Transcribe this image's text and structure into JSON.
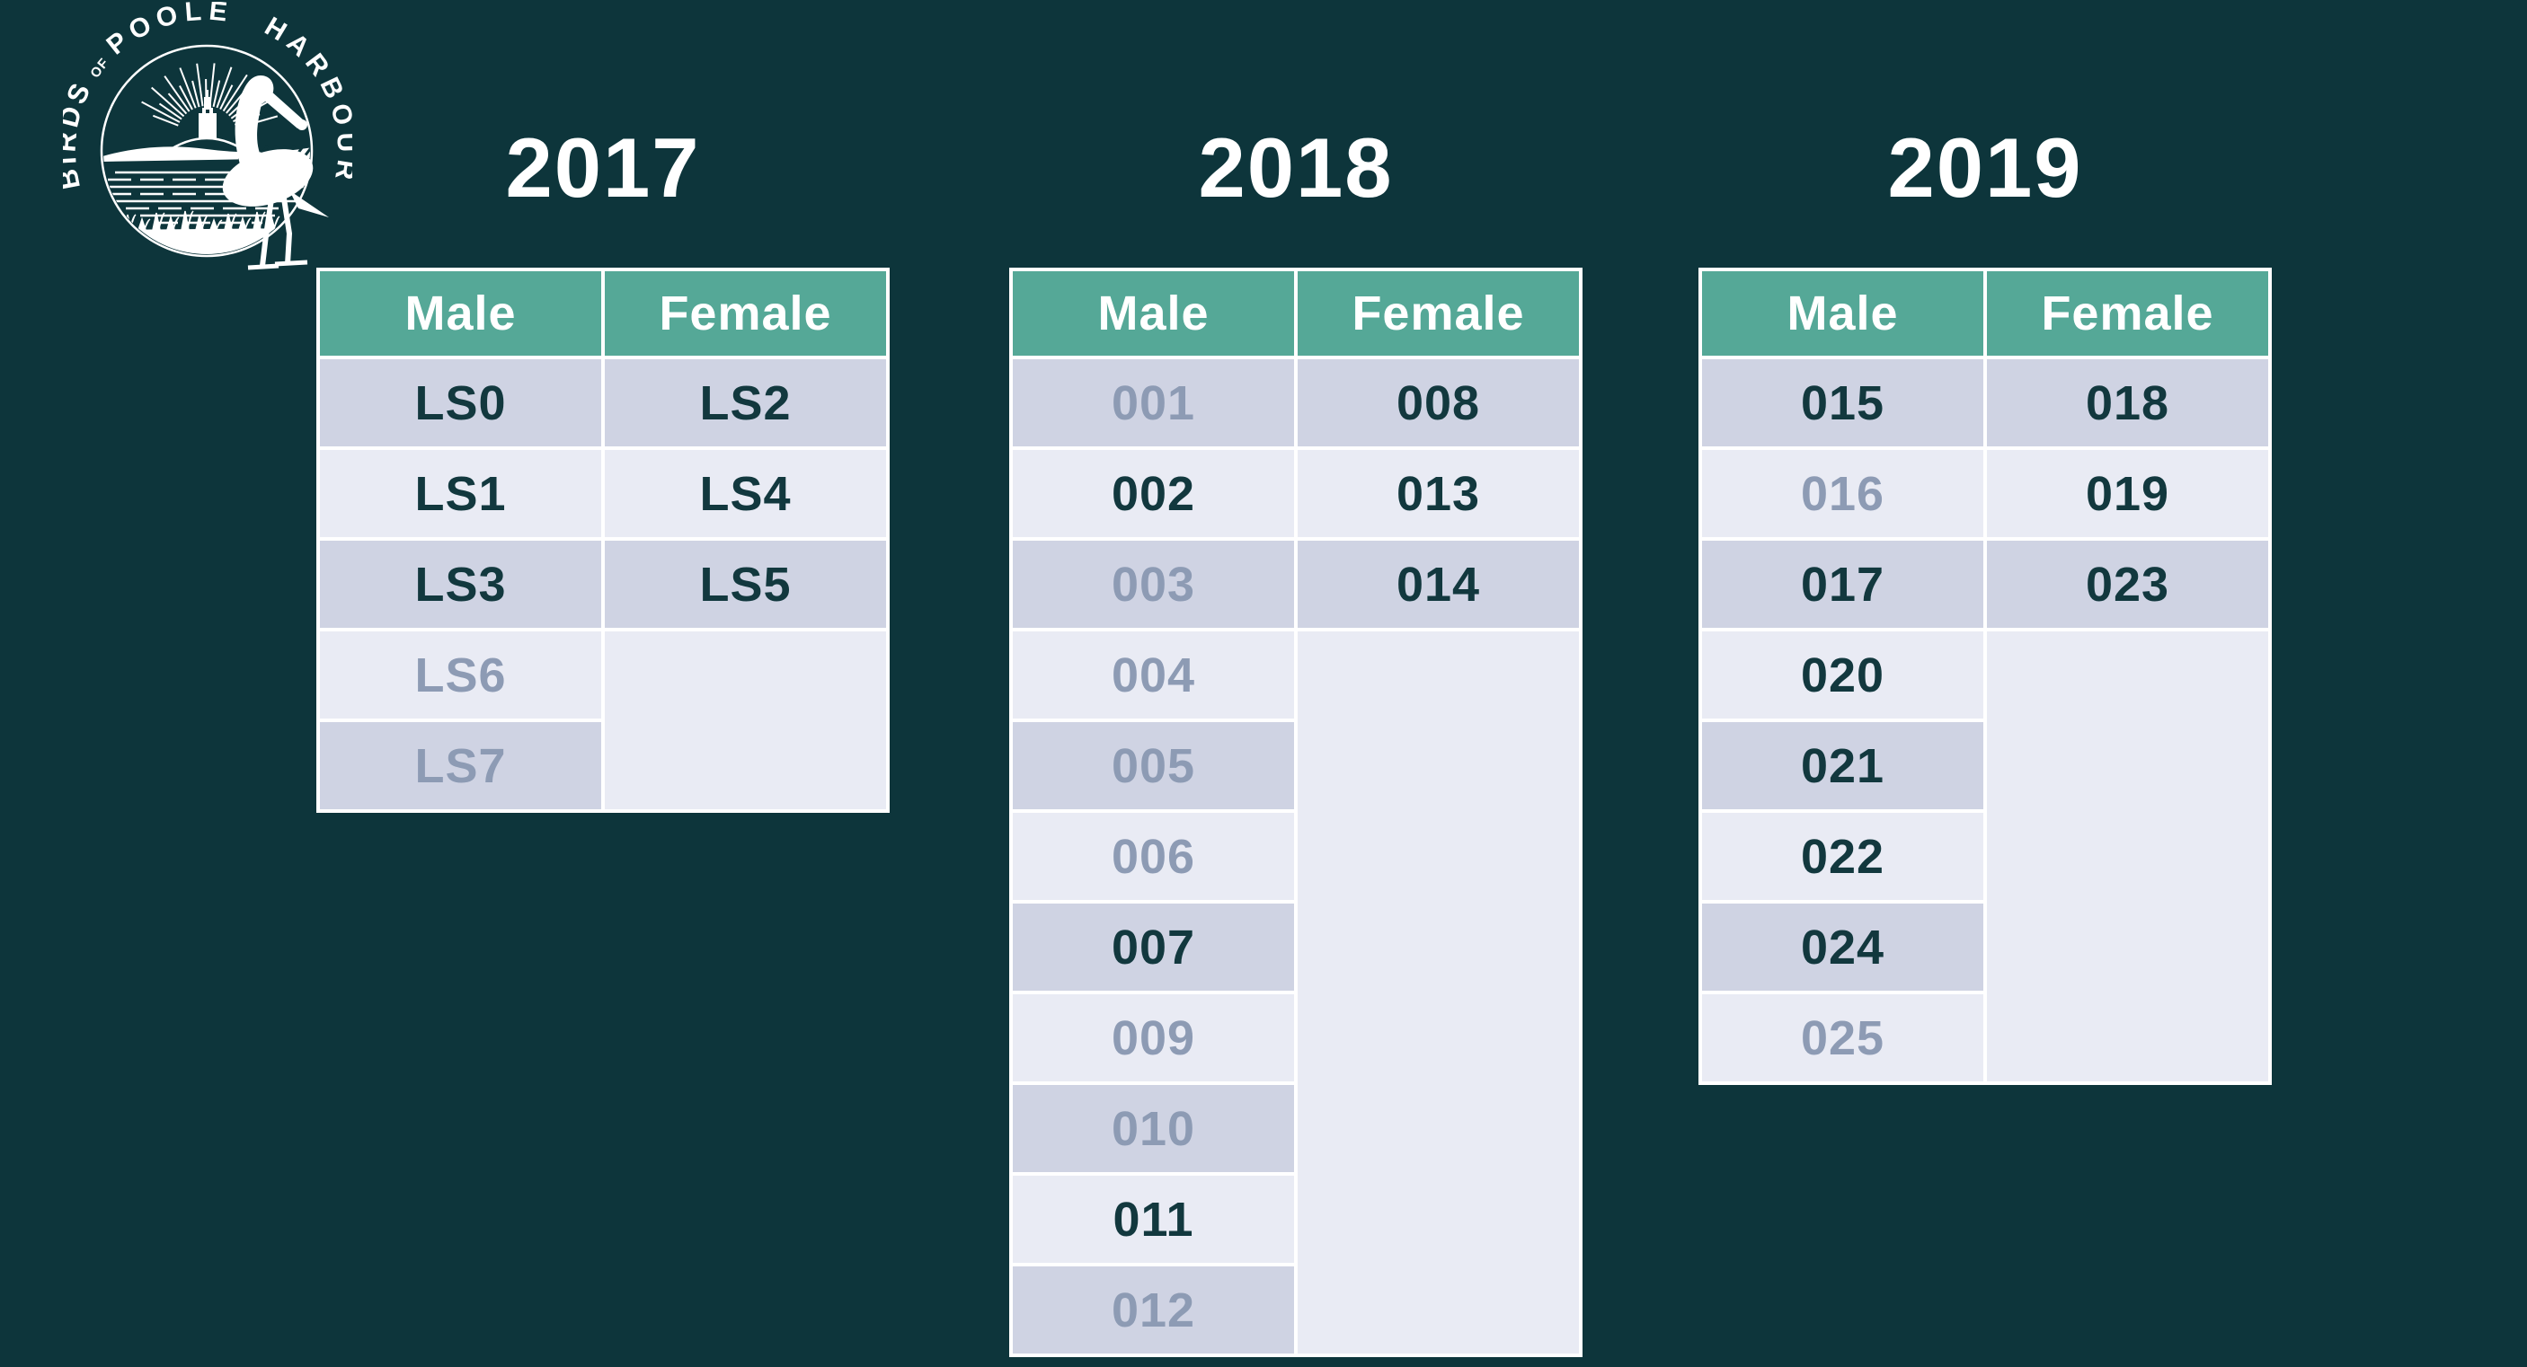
{
  "logo": {
    "name": "Birds of Poole Harbour",
    "arc_birds": "BIRDS",
    "arc_of": "OF",
    "arc_poole": "POOLE",
    "arc_harbour": "HARBOUR"
  },
  "colors": {
    "background": "#0D353B",
    "header_teal": "#55A897",
    "row_dark_lavender": "#CFD3E3",
    "row_light_lavender": "#E9EBF4",
    "text_dark": "#12383E",
    "text_dimmed": "#8D9BB4",
    "text_white": "#FFFFFF"
  },
  "tables": [
    {
      "year": "2017",
      "columns": [
        "Male",
        "Female"
      ],
      "male": [
        {
          "id": "LS0",
          "dim": false
        },
        {
          "id": "LS1",
          "dim": false
        },
        {
          "id": "LS3",
          "dim": false
        },
        {
          "id": "LS6",
          "dim": true
        },
        {
          "id": "LS7",
          "dim": true
        }
      ],
      "female": [
        {
          "id": "LS2",
          "dim": false
        },
        {
          "id": "LS4",
          "dim": false
        },
        {
          "id": "LS5",
          "dim": false
        }
      ]
    },
    {
      "year": "2018",
      "columns": [
        "Male",
        "Female"
      ],
      "male": [
        {
          "id": "001",
          "dim": true
        },
        {
          "id": "002",
          "dim": false
        },
        {
          "id": "003",
          "dim": true
        },
        {
          "id": "004",
          "dim": true
        },
        {
          "id": "005",
          "dim": true
        },
        {
          "id": "006",
          "dim": true
        },
        {
          "id": "007",
          "dim": false
        },
        {
          "id": "009",
          "dim": true
        },
        {
          "id": "010",
          "dim": true
        },
        {
          "id": "011",
          "dim": false
        },
        {
          "id": "012",
          "dim": true
        }
      ],
      "female": [
        {
          "id": "008",
          "dim": false
        },
        {
          "id": "013",
          "dim": false
        },
        {
          "id": "014",
          "dim": false
        }
      ]
    },
    {
      "year": "2019",
      "columns": [
        "Male",
        "Female"
      ],
      "male": [
        {
          "id": "015",
          "dim": false
        },
        {
          "id": "016",
          "dim": true
        },
        {
          "id": "017",
          "dim": false
        },
        {
          "id": "020",
          "dim": false
        },
        {
          "id": "021",
          "dim": false
        },
        {
          "id": "022",
          "dim": false
        },
        {
          "id": "024",
          "dim": false
        },
        {
          "id": "025",
          "dim": true
        }
      ],
      "female": [
        {
          "id": "018",
          "dim": false
        },
        {
          "id": "019",
          "dim": false
        },
        {
          "id": "023",
          "dim": false
        }
      ]
    }
  ],
  "chart_data": [
    {
      "type": "table",
      "title": "2017",
      "columns": [
        "Male",
        "Female"
      ],
      "male": [
        "LS0",
        "LS1",
        "LS3",
        "LS6",
        "LS7"
      ],
      "female": [
        "LS2",
        "LS4",
        "LS5"
      ],
      "grayed_out_male": [
        "LS6",
        "LS7"
      ],
      "grayed_out_female": []
    },
    {
      "type": "table",
      "title": "2018",
      "columns": [
        "Male",
        "Female"
      ],
      "male": [
        "001",
        "002",
        "003",
        "004",
        "005",
        "006",
        "007",
        "009",
        "010",
        "011",
        "012"
      ],
      "female": [
        "008",
        "013",
        "014"
      ],
      "grayed_out_male": [
        "001",
        "003",
        "004",
        "005",
        "006",
        "009",
        "010",
        "012"
      ],
      "grayed_out_female": []
    },
    {
      "type": "table",
      "title": "2019",
      "columns": [
        "Male",
        "Female"
      ],
      "male": [
        "015",
        "016",
        "017",
        "020",
        "021",
        "022",
        "024",
        "025"
      ],
      "female": [
        "018",
        "019",
        "023"
      ],
      "grayed_out_male": [
        "016",
        "025"
      ],
      "grayed_out_female": []
    }
  ]
}
